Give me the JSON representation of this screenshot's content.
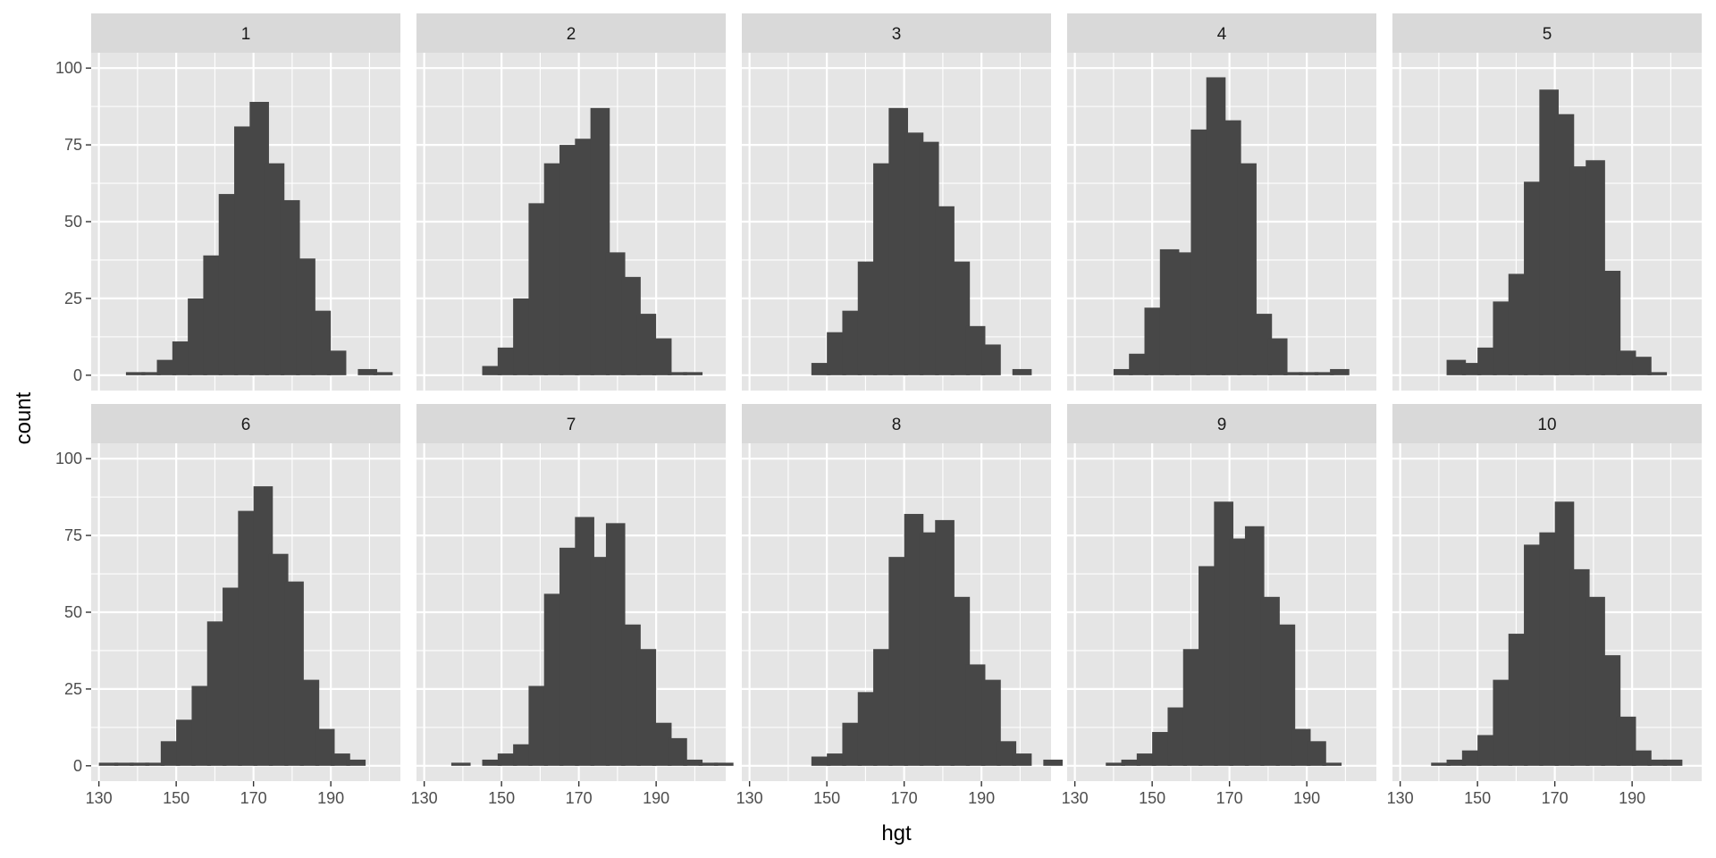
{
  "chart_data": {
    "type": "bar",
    "xlabel": "hgt",
    "ylabel": "count",
    "bin_width": 5,
    "x_ticks": [
      130,
      150,
      170,
      190
    ],
    "y_ticks": [
      0,
      25,
      50,
      75,
      100
    ],
    "xlim": [
      128,
      208
    ],
    "ylim": [
      -5,
      105
    ],
    "grid": true,
    "colors": {
      "bar": "#474747",
      "panel_background": "#e5e5e5",
      "strip_background": "#d9d9d9",
      "grid": "#ffffff"
    },
    "facets": [
      {
        "label": "1",
        "bins": [
          [
            137,
            1
          ],
          [
            141,
            1
          ],
          [
            145,
            5
          ],
          [
            149,
            11
          ],
          [
            153,
            25
          ],
          [
            157,
            39
          ],
          [
            161,
            59
          ],
          [
            165,
            81
          ],
          [
            169,
            89
          ],
          [
            173,
            69
          ],
          [
            177,
            57
          ],
          [
            181,
            38
          ],
          [
            185,
            21
          ],
          [
            189,
            8
          ],
          [
            197,
            2
          ],
          [
            201,
            1
          ]
        ]
      },
      {
        "label": "2",
        "bins": [
          [
            145,
            3
          ],
          [
            149,
            9
          ],
          [
            153,
            25
          ],
          [
            157,
            56
          ],
          [
            161,
            69
          ],
          [
            165,
            75
          ],
          [
            169,
            77
          ],
          [
            173,
            87
          ],
          [
            177,
            40
          ],
          [
            181,
            32
          ],
          [
            185,
            20
          ],
          [
            189,
            12
          ],
          [
            193,
            1
          ],
          [
            197,
            1
          ]
        ]
      },
      {
        "label": "3",
        "bins": [
          [
            146,
            4
          ],
          [
            150,
            14
          ],
          [
            154,
            21
          ],
          [
            158,
            37
          ],
          [
            162,
            69
          ],
          [
            166,
            87
          ],
          [
            170,
            79
          ],
          [
            174,
            76
          ],
          [
            178,
            55
          ],
          [
            182,
            37
          ],
          [
            186,
            16
          ],
          [
            190,
            10
          ],
          [
            198,
            2
          ]
        ]
      },
      {
        "label": "4",
        "bins": [
          [
            140,
            2
          ],
          [
            144,
            7
          ],
          [
            148,
            22
          ],
          [
            152,
            41
          ],
          [
            156,
            40
          ],
          [
            160,
            80
          ],
          [
            164,
            97
          ],
          [
            168,
            83
          ],
          [
            172,
            69
          ],
          [
            176,
            20
          ],
          [
            180,
            12
          ],
          [
            184,
            1
          ],
          [
            188,
            1
          ],
          [
            192,
            1
          ],
          [
            196,
            2
          ]
        ]
      },
      {
        "label": "5",
        "bins": [
          [
            142,
            5
          ],
          [
            146,
            4
          ],
          [
            150,
            9
          ],
          [
            154,
            24
          ],
          [
            158,
            33
          ],
          [
            162,
            63
          ],
          [
            166,
            93
          ],
          [
            170,
            85
          ],
          [
            174,
            68
          ],
          [
            178,
            70
          ],
          [
            182,
            34
          ],
          [
            186,
            8
          ],
          [
            190,
            6
          ],
          [
            194,
            1
          ]
        ]
      },
      {
        "label": "6",
        "bins": [
          [
            130,
            1
          ],
          [
            134,
            1
          ],
          [
            138,
            1
          ],
          [
            142,
            1
          ],
          [
            146,
            8
          ],
          [
            150,
            15
          ],
          [
            154,
            26
          ],
          [
            158,
            47
          ],
          [
            162,
            58
          ],
          [
            166,
            83
          ],
          [
            170,
            91
          ],
          [
            174,
            69
          ],
          [
            178,
            60
          ],
          [
            182,
            28
          ],
          [
            186,
            12
          ],
          [
            190,
            4
          ],
          [
            194,
            2
          ]
        ]
      },
      {
        "label": "7",
        "bins": [
          [
            137,
            1
          ],
          [
            145,
            2
          ],
          [
            149,
            4
          ],
          [
            153,
            7
          ],
          [
            157,
            26
          ],
          [
            161,
            56
          ],
          [
            165,
            71
          ],
          [
            169,
            81
          ],
          [
            173,
            68
          ],
          [
            177,
            79
          ],
          [
            181,
            46
          ],
          [
            185,
            38
          ],
          [
            189,
            14
          ],
          [
            193,
            9
          ],
          [
            197,
            2
          ],
          [
            201,
            1
          ],
          [
            205,
            1
          ]
        ]
      },
      {
        "label": "8",
        "bins": [
          [
            146,
            3
          ],
          [
            150,
            4
          ],
          [
            154,
            14
          ],
          [
            158,
            24
          ],
          [
            162,
            38
          ],
          [
            166,
            68
          ],
          [
            170,
            82
          ],
          [
            174,
            76
          ],
          [
            178,
            80
          ],
          [
            182,
            55
          ],
          [
            186,
            33
          ],
          [
            190,
            28
          ],
          [
            194,
            8
          ],
          [
            198,
            4
          ],
          [
            206,
            2
          ]
        ]
      },
      {
        "label": "9",
        "bins": [
          [
            138,
            1
          ],
          [
            142,
            2
          ],
          [
            146,
            4
          ],
          [
            150,
            11
          ],
          [
            154,
            19
          ],
          [
            158,
            38
          ],
          [
            162,
            65
          ],
          [
            166,
            86
          ],
          [
            170,
            74
          ],
          [
            174,
            78
          ],
          [
            178,
            55
          ],
          [
            182,
            46
          ],
          [
            186,
            12
          ],
          [
            190,
            8
          ],
          [
            194,
            1
          ]
        ]
      },
      {
        "label": "10",
        "bins": [
          [
            138,
            1
          ],
          [
            142,
            2
          ],
          [
            146,
            5
          ],
          [
            150,
            10
          ],
          [
            154,
            28
          ],
          [
            158,
            43
          ],
          [
            162,
            72
          ],
          [
            166,
            76
          ],
          [
            170,
            86
          ],
          [
            174,
            64
          ],
          [
            178,
            55
          ],
          [
            182,
            36
          ],
          [
            186,
            16
          ],
          [
            190,
            5
          ],
          [
            194,
            2
          ],
          [
            198,
            2
          ]
        ]
      }
    ]
  }
}
